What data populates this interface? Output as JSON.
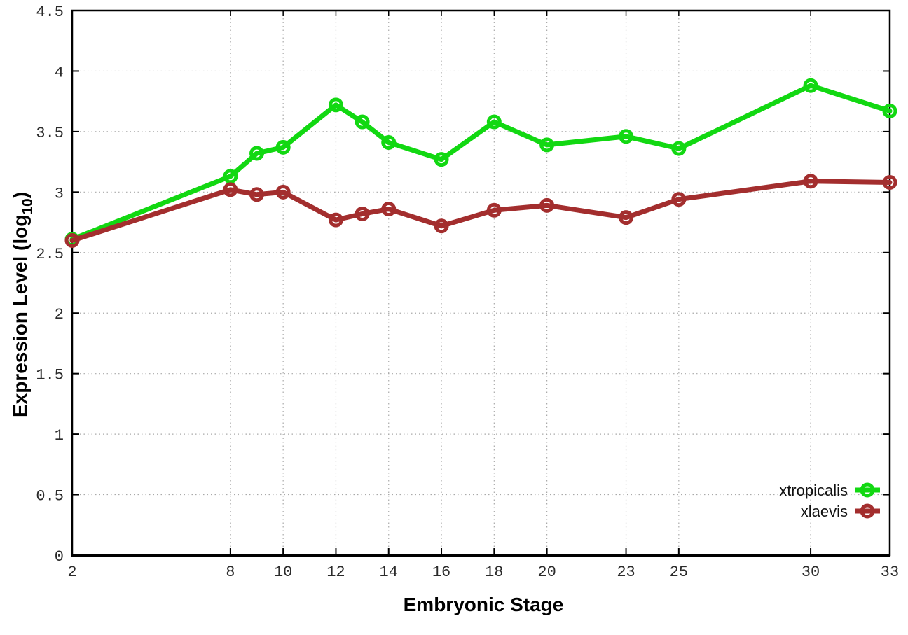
{
  "chart_data": {
    "type": "line",
    "title": "",
    "xlabel": "Embryonic Stage",
    "ylabel": "Expression Level (log10)",
    "ylabel_parts": {
      "main": "Expression Level (log",
      "sub": "10",
      "end": ")"
    },
    "x": [
      2,
      8,
      9,
      10,
      12,
      13,
      14,
      16,
      18,
      20,
      23,
      25,
      30,
      33
    ],
    "x_tick_labels": [
      "2",
      "8",
      "10",
      "12",
      "14",
      "16",
      "18",
      "20",
      "23",
      "25",
      "30",
      "33"
    ],
    "x_tick_values": [
      2,
      8,
      10,
      12,
      14,
      16,
      18,
      20,
      23,
      25,
      30,
      33
    ],
    "y_ticks": [
      0,
      0.5,
      1,
      1.5,
      2,
      2.5,
      3,
      3.5,
      4,
      4.5
    ],
    "xlim": [
      2,
      33
    ],
    "ylim": [
      0,
      4.5
    ],
    "grid": true,
    "legend_position": "bottom-right-inside",
    "series": [
      {
        "name": "xtropicalis",
        "color": "#12d812",
        "values": [
          2.61,
          3.13,
          3.32,
          3.37,
          3.72,
          3.58,
          3.41,
          3.27,
          3.58,
          3.39,
          3.46,
          3.36,
          3.88,
          3.67
        ]
      },
      {
        "name": "xlaevis",
        "color": "#a32e2e",
        "values": [
          2.6,
          3.02,
          2.98,
          3.0,
          2.77,
          2.82,
          2.86,
          2.72,
          2.85,
          2.89,
          2.79,
          2.94,
          3.09,
          3.08
        ]
      }
    ]
  },
  "style": {
    "grid_color": "#a9a9a9",
    "axis_color": "#000000",
    "tick_label_color": "#2b2b2b",
    "background": "#ffffff"
  }
}
